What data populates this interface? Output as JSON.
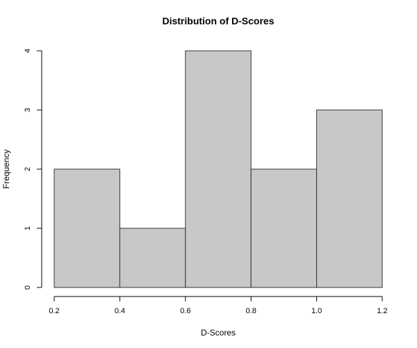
{
  "chart_data": {
    "type": "bar",
    "subtype": "histogram",
    "title": "Distribution of D-Scores",
    "xlabel": "D-Scores",
    "ylabel": "Frequency",
    "bins": [
      {
        "start": 0.2,
        "end": 0.4,
        "count": 2
      },
      {
        "start": 0.4,
        "end": 0.6,
        "count": 1
      },
      {
        "start": 0.6,
        "end": 0.8,
        "count": 4
      },
      {
        "start": 0.8,
        "end": 1.0,
        "count": 2
      },
      {
        "start": 1.0,
        "end": 1.2,
        "count": 3
      }
    ],
    "xlim": [
      0.2,
      1.2
    ],
    "ylim": [
      0,
      4
    ],
    "xticks": [
      0.2,
      0.4,
      0.6,
      0.8,
      1.0,
      1.2
    ],
    "xtick_labels": [
      "0.2",
      "0.4",
      "0.6",
      "0.8",
      "1.0",
      "1.2"
    ],
    "yticks": [
      0,
      1,
      2,
      3,
      4
    ],
    "ytick_labels": [
      "0",
      "1",
      "2",
      "3",
      "4"
    ],
    "bar_color": "#c8c8c8",
    "edge_color": "#333333",
    "grid": false,
    "legend": "none"
  }
}
